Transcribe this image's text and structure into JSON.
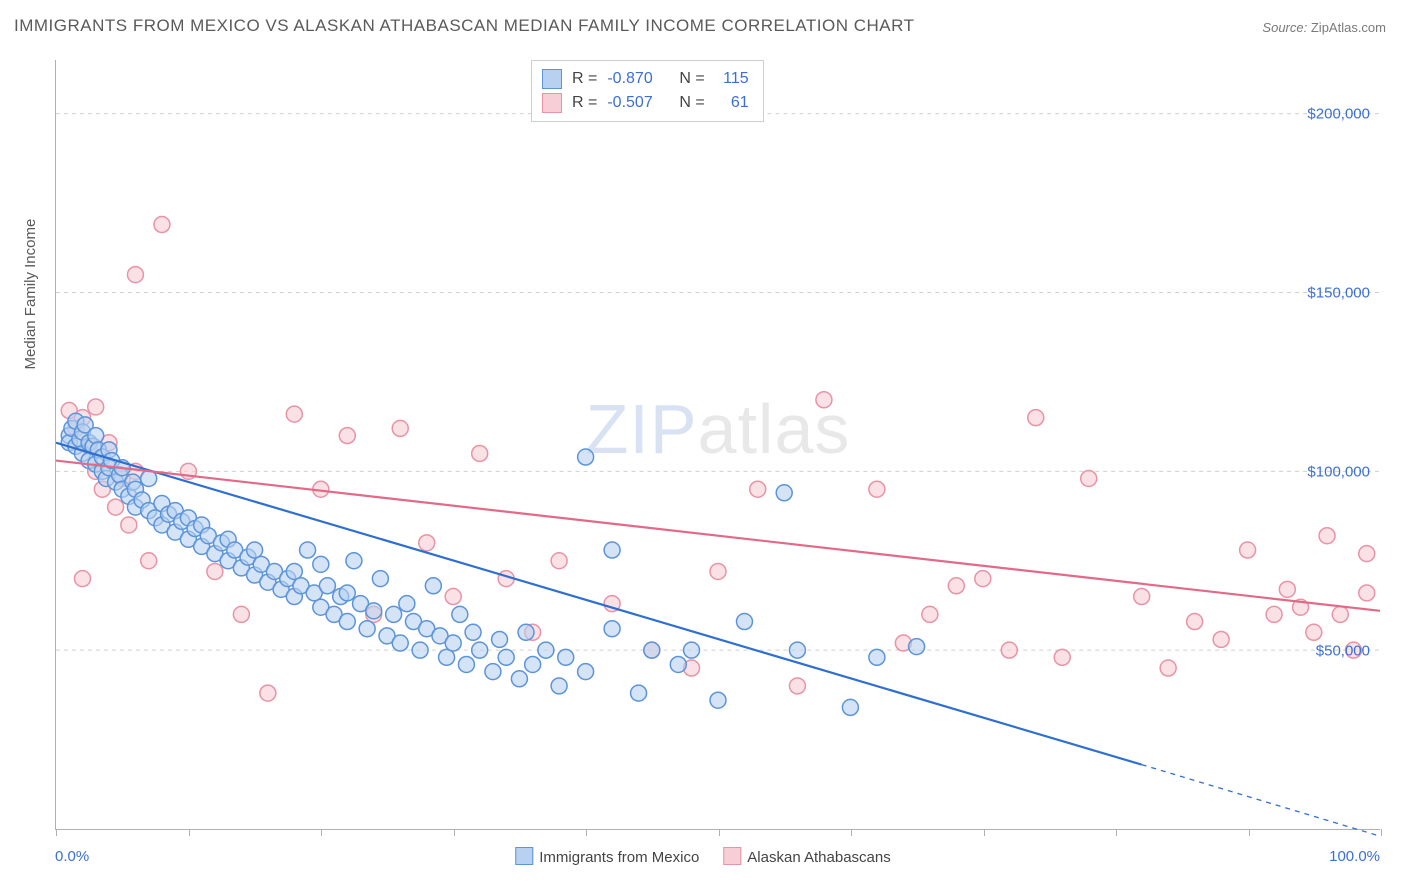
{
  "title": "IMMIGRANTS FROM MEXICO VS ALASKAN ATHABASCAN MEDIAN FAMILY INCOME CORRELATION CHART",
  "source_label": "Source:",
  "source_value": "ZipAtlas.com",
  "watermark_a": "ZIP",
  "watermark_b": "atlas",
  "chart": {
    "type": "scatter",
    "xlim": [
      0,
      100
    ],
    "ylim": [
      0,
      215000
    ],
    "x_ticks": [
      0,
      10,
      20,
      30,
      40,
      50,
      60,
      70,
      80,
      90,
      100
    ],
    "x_label_min": "0.0%",
    "x_label_max": "100.0%",
    "y_axis_title": "Median Family Income",
    "y_gridlines": [
      50000,
      100000,
      150000,
      200000
    ],
    "y_tick_labels": [
      "$50,000",
      "$100,000",
      "$150,000",
      "$200,000"
    ],
    "grid_color": "#d0d0d0",
    "axis_color": "#b0b0b0",
    "background_color": "#ffffff",
    "marker_radius": 8,
    "marker_stroke_width": 1.5,
    "line_width": 2.2,
    "series": [
      {
        "key": "mex",
        "label": "Immigrants from Mexico",
        "fill": "#b8d1f0",
        "stroke": "#5c94da",
        "line_color": "#2f6fd0",
        "R": "-0.870",
        "N": "115",
        "trend": {
          "x1": 0,
          "y1": 108000,
          "x2": 82,
          "y2": 18000,
          "x2_dash": 100,
          "y2_dash": -2000
        },
        "points": [
          [
            1,
            110000
          ],
          [
            1,
            108000
          ],
          [
            1.2,
            112000
          ],
          [
            1.5,
            107000
          ],
          [
            1.5,
            114000
          ],
          [
            1.8,
            109000
          ],
          [
            2,
            111000
          ],
          [
            2,
            105000
          ],
          [
            2.2,
            113000
          ],
          [
            2.5,
            108000
          ],
          [
            2.5,
            103000
          ],
          [
            2.8,
            107000
          ],
          [
            3,
            110000
          ],
          [
            3,
            102000
          ],
          [
            3.2,
            106000
          ],
          [
            3.5,
            100000
          ],
          [
            3.5,
            104000
          ],
          [
            3.8,
            98000
          ],
          [
            4,
            101000
          ],
          [
            4,
            106000
          ],
          [
            4.2,
            103000
          ],
          [
            4.5,
            97000
          ],
          [
            4.8,
            99000
          ],
          [
            5,
            95000
          ],
          [
            5,
            101000
          ],
          [
            5.5,
            93000
          ],
          [
            5.8,
            97000
          ],
          [
            6,
            90000
          ],
          [
            6,
            95000
          ],
          [
            6.5,
            92000
          ],
          [
            7,
            89000
          ],
          [
            7,
            98000
          ],
          [
            7.5,
            87000
          ],
          [
            8,
            85000
          ],
          [
            8,
            91000
          ],
          [
            8.5,
            88000
          ],
          [
            9,
            83000
          ],
          [
            9,
            89000
          ],
          [
            9.5,
            86000
          ],
          [
            10,
            81000
          ],
          [
            10,
            87000
          ],
          [
            10.5,
            84000
          ],
          [
            11,
            79000
          ],
          [
            11,
            85000
          ],
          [
            11.5,
            82000
          ],
          [
            12,
            77000
          ],
          [
            12.5,
            80000
          ],
          [
            13,
            75000
          ],
          [
            13,
            81000
          ],
          [
            13.5,
            78000
          ],
          [
            14,
            73000
          ],
          [
            14.5,
            76000
          ],
          [
            15,
            71000
          ],
          [
            15,
            78000
          ],
          [
            15.5,
            74000
          ],
          [
            16,
            69000
          ],
          [
            16.5,
            72000
          ],
          [
            17,
            67000
          ],
          [
            17.5,
            70000
          ],
          [
            18,
            65000
          ],
          [
            18,
            72000
          ],
          [
            18.5,
            68000
          ],
          [
            19,
            78000
          ],
          [
            19.5,
            66000
          ],
          [
            20,
            62000
          ],
          [
            20,
            74000
          ],
          [
            20.5,
            68000
          ],
          [
            21,
            60000
          ],
          [
            21.5,
            65000
          ],
          [
            22,
            58000
          ],
          [
            22,
            66000
          ],
          [
            22.5,
            75000
          ],
          [
            23,
            63000
          ],
          [
            23.5,
            56000
          ],
          [
            24,
            61000
          ],
          [
            24.5,
            70000
          ],
          [
            25,
            54000
          ],
          [
            25.5,
            60000
          ],
          [
            26,
            52000
          ],
          [
            26.5,
            63000
          ],
          [
            27,
            58000
          ],
          [
            27.5,
            50000
          ],
          [
            28,
            56000
          ],
          [
            28.5,
            68000
          ],
          [
            29,
            54000
          ],
          [
            29.5,
            48000
          ],
          [
            30,
            52000
          ],
          [
            30.5,
            60000
          ],
          [
            31,
            46000
          ],
          [
            31.5,
            55000
          ],
          [
            32,
            50000
          ],
          [
            33,
            44000
          ],
          [
            33.5,
            53000
          ],
          [
            34,
            48000
          ],
          [
            35,
            42000
          ],
          [
            35.5,
            55000
          ],
          [
            36,
            46000
          ],
          [
            37,
            50000
          ],
          [
            38,
            40000
          ],
          [
            38.5,
            48000
          ],
          [
            40,
            104000
          ],
          [
            40,
            44000
          ],
          [
            42,
            78000
          ],
          [
            42,
            56000
          ],
          [
            44,
            38000
          ],
          [
            45,
            50000
          ],
          [
            47,
            46000
          ],
          [
            50,
            36000
          ],
          [
            52,
            58000
          ],
          [
            55,
            94000
          ],
          [
            56,
            50000
          ],
          [
            60,
            34000
          ],
          [
            62,
            48000
          ],
          [
            65,
            51000
          ],
          [
            48,
            50000
          ]
        ]
      },
      {
        "key": "ath",
        "label": "Alaskan Athabascans",
        "fill": "#f7cdd6",
        "stroke": "#e893a6",
        "line_color": "#e26a88",
        "R": "-0.507",
        "N": "61",
        "trend": {
          "x1": 0,
          "y1": 103000,
          "x2": 100,
          "y2": 61000
        },
        "points": [
          [
            1,
            117000
          ],
          [
            1.5,
            112000
          ],
          [
            2,
            115000
          ],
          [
            2.5,
            107000
          ],
          [
            3,
            118000
          ],
          [
            3,
            100000
          ],
          [
            3.5,
            95000
          ],
          [
            4,
            108000
          ],
          [
            4.5,
            90000
          ],
          [
            5,
            98000
          ],
          [
            5.5,
            85000
          ],
          [
            6,
            100000
          ],
          [
            7,
            75000
          ],
          [
            8,
            169000
          ],
          [
            2,
            70000
          ],
          [
            6,
            155000
          ],
          [
            10,
            100000
          ],
          [
            12,
            72000
          ],
          [
            14,
            60000
          ],
          [
            16,
            38000
          ],
          [
            18,
            116000
          ],
          [
            20,
            95000
          ],
          [
            22,
            110000
          ],
          [
            24,
            60000
          ],
          [
            26,
            112000
          ],
          [
            28,
            80000
          ],
          [
            30,
            65000
          ],
          [
            32,
            105000
          ],
          [
            34,
            70000
          ],
          [
            36,
            55000
          ],
          [
            38,
            75000
          ],
          [
            42,
            63000
          ],
          [
            45,
            50000
          ],
          [
            48,
            45000
          ],
          [
            50,
            72000
          ],
          [
            53,
            95000
          ],
          [
            56,
            40000
          ],
          [
            58,
            120000
          ],
          [
            62,
            95000
          ],
          [
            64,
            52000
          ],
          [
            66,
            60000
          ],
          [
            68,
            68000
          ],
          [
            70,
            70000
          ],
          [
            72,
            50000
          ],
          [
            74,
            115000
          ],
          [
            76,
            48000
          ],
          [
            78,
            98000
          ],
          [
            82,
            65000
          ],
          [
            84,
            45000
          ],
          [
            86,
            58000
          ],
          [
            88,
            53000
          ],
          [
            90,
            78000
          ],
          [
            92,
            60000
          ],
          [
            93,
            67000
          ],
          [
            94,
            62000
          ],
          [
            95,
            55000
          ],
          [
            96,
            82000
          ],
          [
            97,
            60000
          ],
          [
            98,
            50000
          ],
          [
            99,
            77000
          ],
          [
            99,
            66000
          ]
        ]
      }
    ]
  }
}
